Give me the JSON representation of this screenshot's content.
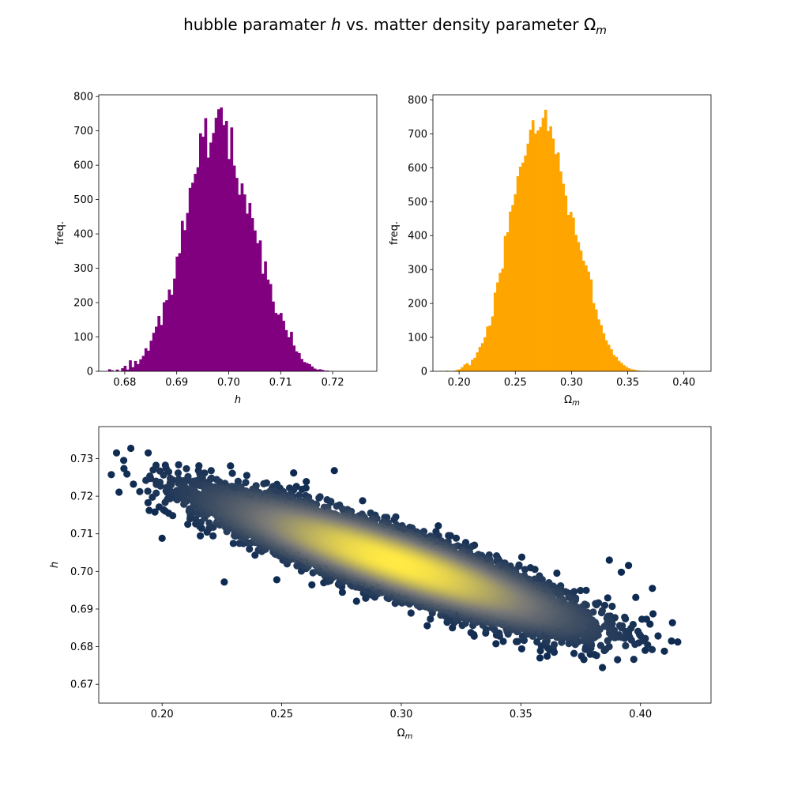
{
  "figure": {
    "title": "hubble paramater",
    "title_h": "h",
    "title_mid": "vs. matter density parameter Ω",
    "title_sub": "m"
  },
  "colors": {
    "h_hist": "#800080",
    "om_hist": "#ffa500",
    "scatter_low": "#00204d",
    "scatter_mid": "#7c7b78",
    "scatter_high": "#ffe945"
  },
  "chart_data": [
    {
      "id": "hist-h",
      "type": "bar",
      "title": "",
      "xlabel": "h",
      "ylabel": "freq.",
      "xlim": [
        0.675,
        0.7285
      ],
      "ylim": [
        0,
        805
      ],
      "xticks": [
        0.68,
        0.69,
        0.7,
        0.71,
        0.72
      ],
      "xtick_labels": [
        "0.68",
        "0.69",
        "0.70",
        "0.71",
        "0.72"
      ],
      "yticks": [
        0,
        100,
        200,
        300,
        400,
        500,
        600,
        700,
        800
      ],
      "bin_start": 0.6768,
      "bin_width": 0.0005,
      "values": [
        6,
        3,
        0,
        5,
        0,
        9,
        16,
        5,
        32,
        12,
        30,
        21,
        35,
        45,
        67,
        60,
        89,
        112,
        130,
        161,
        135,
        201,
        207,
        238,
        223,
        270,
        334,
        344,
        438,
        411,
        461,
        534,
        549,
        575,
        594,
        693,
        683,
        737,
        622,
        666,
        694,
        738,
        763,
        768,
        717,
        729,
        618,
        710,
        599,
        563,
        514,
        547,
        515,
        459,
        490,
        446,
        410,
        373,
        381,
        284,
        320,
        267,
        254,
        203,
        170,
        165,
        170,
        147,
        120,
        99,
        115,
        75,
        58,
        53,
        36,
        27,
        24,
        21,
        14,
        8,
        5,
        6,
        4,
        2,
        2
      ]
    },
    {
      "id": "hist-om",
      "type": "bar",
      "title": "",
      "xlabel": "Ω_m",
      "ylabel": "freq.",
      "xlim": [
        0.1767,
        0.4241
      ],
      "ylim": [
        0,
        815
      ],
      "xticks": [
        0.2,
        0.25,
        0.3,
        0.35,
        0.4
      ],
      "xtick_labels": [
        "0.20",
        "0.25",
        "0.30",
        "0.35",
        "0.40"
      ],
      "yticks": [
        0,
        100,
        200,
        300,
        400,
        500,
        600,
        700,
        800
      ],
      "bin_start": 0.188,
      "bin_width": 0.00225,
      "values": [
        2,
        0,
        0,
        2,
        4,
        6,
        12,
        20,
        24,
        18,
        34,
        40,
        56,
        72,
        83,
        100,
        132,
        135,
        162,
        232,
        262,
        290,
        303,
        399,
        410,
        471,
        490,
        522,
        575,
        603,
        615,
        636,
        671,
        712,
        740,
        701,
        710,
        720,
        747,
        771,
        708,
        722,
        686,
        640,
        645,
        589,
        553,
        518,
        461,
        470,
        453,
        402,
        381,
        356,
        326,
        312,
        294,
        271,
        201,
        182,
        153,
        136,
        112,
        91,
        78,
        65,
        48,
        42,
        31,
        25,
        18,
        13,
        9,
        6,
        5,
        3,
        2,
        1,
        1,
        1
      ]
    },
    {
      "id": "scatter",
      "type": "scatter",
      "title": "",
      "xlabel": "Ω_m",
      "ylabel": "h",
      "xlim": [
        0.1735,
        0.4295
      ],
      "ylim": [
        0.665,
        0.7385
      ],
      "xticks": [
        0.2,
        0.25,
        0.3,
        0.35,
        0.4
      ],
      "xtick_labels": [
        "0.20",
        "0.25",
        "0.30",
        "0.35",
        "0.40"
      ],
      "yticks": [
        0.67,
        0.68,
        0.69,
        0.7,
        0.71,
        0.72,
        0.73
      ],
      "ytick_labels": [
        "0.67",
        "0.68",
        "0.69",
        "0.70",
        "0.71",
        "0.72",
        "0.73"
      ],
      "color_by": "density",
      "center": {
        "x": 0.2975,
        "y": 0.7025
      },
      "spread": {
        "x": 0.032,
        "y": 0.0075,
        "correlation": -0.88
      },
      "num_points": 20000,
      "outliers": [
        {
          "x": 0.188,
          "y": 0.7232
        },
        {
          "x": 0.197,
          "y": 0.7158
        },
        {
          "x": 0.2,
          "y": 0.7088
        },
        {
          "x": 0.204,
          "y": 0.7205
        },
        {
          "x": 0.226,
          "y": 0.6972
        },
        {
          "x": 0.272,
          "y": 0.7268
        },
        {
          "x": 0.255,
          "y": 0.7262
        },
        {
          "x": 0.395,
          "y": 0.7016
        },
        {
          "x": 0.405,
          "y": 0.6955
        },
        {
          "x": 0.413,
          "y": 0.6815
        },
        {
          "x": 0.41,
          "y": 0.6788
        },
        {
          "x": 0.402,
          "y": 0.679
        },
        {
          "x": 0.358,
          "y": 0.677
        },
        {
          "x": 0.361,
          "y": 0.6775
        },
        {
          "x": 0.379,
          "y": 0.678
        },
        {
          "x": 0.387,
          "y": 0.703
        },
        {
          "x": 0.392,
          "y": 0.6998
        },
        {
          "x": 0.404,
          "y": 0.686
        }
      ]
    }
  ]
}
